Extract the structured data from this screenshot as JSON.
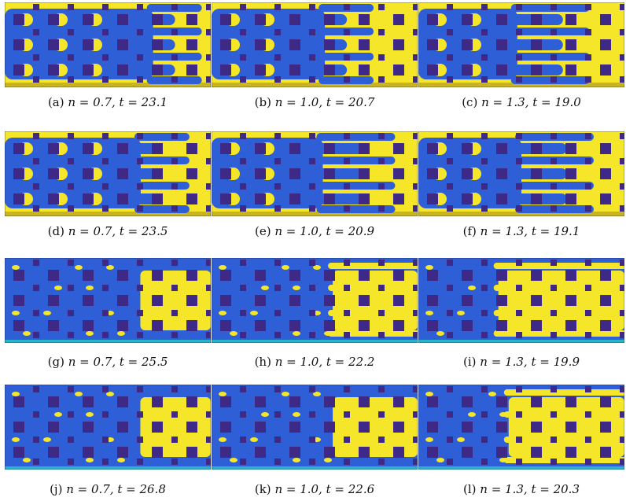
{
  "colors": {
    "fluid_blue": "#2f5fd6",
    "fluid_yellow": "#f6e62a",
    "obstacle": "#3e2a86",
    "interface": "#27b3c9"
  },
  "panels": [
    {
      "id": "a",
      "label": "(a)",
      "eq": "n = 0.7,  t = 23.1",
      "front": 0.72,
      "mode": "lobes",
      "drops": false
    },
    {
      "id": "b",
      "label": "(b)",
      "eq": "n = 1.0,  t = 20.7",
      "front": 0.55,
      "mode": "lobes",
      "drops": false
    },
    {
      "id": "c",
      "label": "(c)",
      "eq": "n = 1.3,  t = 19.0",
      "front": 0.48,
      "mode": "fingers",
      "drops": false
    },
    {
      "id": "d",
      "label": "(d)",
      "eq": "n = 0.7,  t = 23.5",
      "front": 0.66,
      "mode": "lobes",
      "drops": false
    },
    {
      "id": "e",
      "label": "(e)",
      "eq": "n = 1.0,  t = 20.9",
      "front": 0.54,
      "mode": "fingers",
      "drops": false
    },
    {
      "id": "f",
      "label": "(f)",
      "eq": "n = 1.3,  t = 19.1",
      "front": 0.5,
      "mode": "fingers",
      "drops": false
    },
    {
      "id": "g",
      "label": "(g)",
      "eq": "n = 0.7,  t = 25.5",
      "front": 0.62,
      "mode": "front",
      "drops": true
    },
    {
      "id": "h",
      "label": "(h)",
      "eq": "n = 1.0,  t = 22.2",
      "front": 0.55,
      "mode": "front-fingers",
      "drops": true
    },
    {
      "id": "i",
      "label": "(i)",
      "eq": "n = 1.3,  t = 19.9",
      "front": 0.35,
      "mode": "front-fingers",
      "drops": true
    },
    {
      "id": "j",
      "label": "(j)",
      "eq": "n = 0.7,  t = 26.8",
      "front": 0.62,
      "mode": "front",
      "drops": true
    },
    {
      "id": "k",
      "label": "(k)",
      "eq": "n = 1.0,  t = 22.6",
      "front": 0.55,
      "mode": "front",
      "drops": true
    },
    {
      "id": "l",
      "label": "(l)",
      "eq": "n = 1.3,  t = 20.3",
      "front": 0.4,
      "mode": "front-fingers",
      "drops": true
    }
  ]
}
